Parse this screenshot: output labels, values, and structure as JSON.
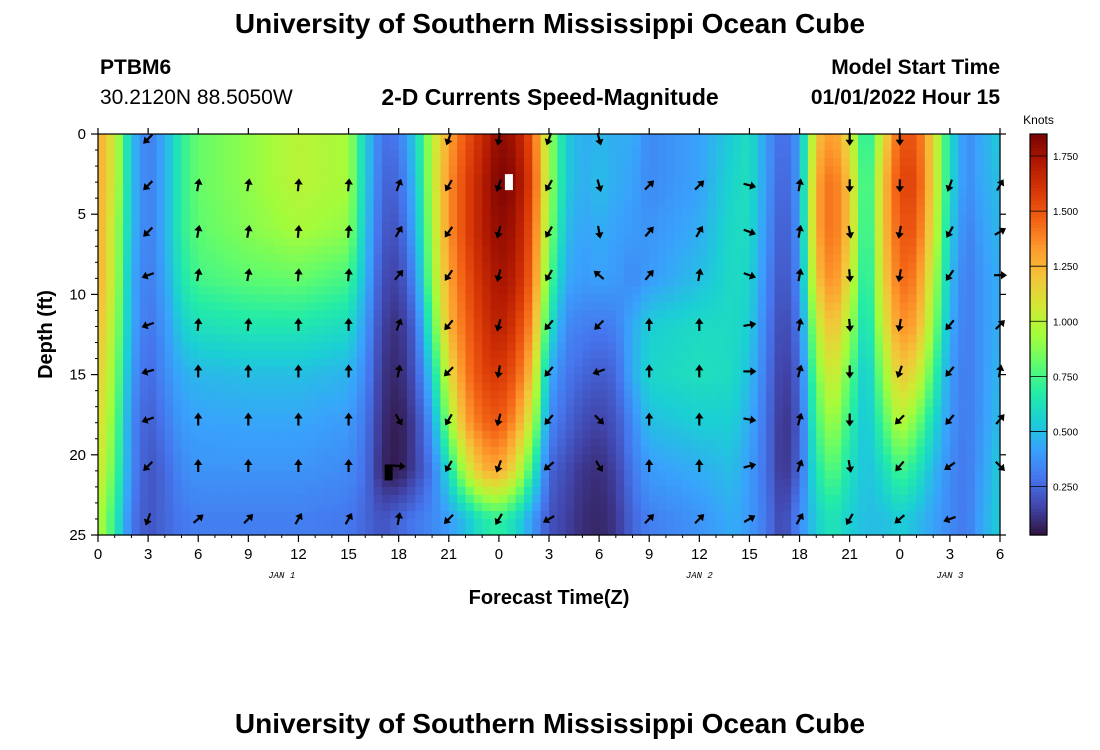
{
  "header": {
    "title": "University of Southern Mississippi Ocean Cube",
    "station_id": "PTBM6",
    "station_coords": "30.2120N  88.5050W",
    "chart_title": "2-D Currents Speed-Magnitude",
    "model_label": "Model Start Time",
    "model_time": "01/01/2022 Hour 15"
  },
  "footer": {
    "title": "University of Southern Mississippi Ocean Cube"
  },
  "chart_data": {
    "type": "heatmap",
    "title": "2-D Currents Speed-Magnitude",
    "xlabel": "Forecast Time(Z)",
    "ylabel": "Depth (ft)",
    "units_label": "Knots",
    "x_range_hours": [
      0,
      54
    ],
    "y_range": [
      0,
      25
    ],
    "y_inverted": true,
    "xtick_hours": [
      0,
      3,
      6,
      9,
      12,
      15,
      18,
      21,
      24,
      27,
      30,
      33,
      36,
      39,
      42,
      45,
      48,
      51,
      54
    ],
    "xtick_labels": [
      "0",
      "3",
      "6",
      "9",
      "12",
      "15",
      "18",
      "21",
      "0",
      "3",
      "6",
      "9",
      "12",
      "15",
      "18",
      "21",
      "0",
      "3",
      "6"
    ],
    "yticks": [
      0,
      5,
      10,
      15,
      20,
      25
    ],
    "ytick_labels": [
      "0",
      "5",
      "10",
      "15",
      "20",
      "25"
    ],
    "day_labels": [
      {
        "hour": 11,
        "text": "JAN 1"
      },
      {
        "hour": 36,
        "text": "JAN 2"
      },
      {
        "hour": 51,
        "text": "JAN 3"
      }
    ],
    "colorbar": {
      "min": 0.03,
      "max": 1.85,
      "ticks": [
        0.25,
        0.5,
        0.75,
        1.0,
        1.25,
        1.5,
        1.75
      ],
      "tick_labels": [
        "0.250",
        "0.500",
        "0.750",
        "1.000",
        "1.250",
        "1.500",
        "1.750"
      ],
      "colormap": [
        "#30123b",
        "#4145ab",
        "#4675ed",
        "#39a2fc",
        "#1bcfd4",
        "#24eca6",
        "#61fc6c",
        "#a4fc3b",
        "#d1e834",
        "#f3c63a",
        "#fe9b2d",
        "#f36315",
        "#d93806",
        "#b11901",
        "#7a0402"
      ]
    },
    "depths": [
      0,
      3,
      6,
      9,
      12,
      15,
      18,
      21,
      24
    ],
    "profiles_note": "speed (knots) at depths [0,3,6,9,12,15,18,21,24] ft for each forecast hour",
    "speed_profiles": [
      {
        "hour": 0,
        "speeds": [
          1.3,
          1.3,
          1.3,
          1.3,
          1.25,
          1.2,
          1.15,
          1.1,
          1.0
        ]
      },
      {
        "hour": 1,
        "speeds": [
          1.05,
          1.05,
          1.0,
          1.0,
          0.95,
          0.9,
          0.85,
          0.8,
          0.7
        ]
      },
      {
        "hour": 2,
        "speeds": [
          0.5,
          0.5,
          0.5,
          0.45,
          0.45,
          0.4,
          0.35,
          0.35,
          0.3
        ]
      },
      {
        "hour": 3,
        "speeds": [
          0.3,
          0.3,
          0.3,
          0.3,
          0.28,
          0.25,
          0.22,
          0.2,
          0.2
        ]
      },
      {
        "hour": 4,
        "speeds": [
          0.45,
          0.45,
          0.45,
          0.42,
          0.38,
          0.35,
          0.3,
          0.25,
          0.25
        ]
      },
      {
        "hour": 5,
        "speeds": [
          0.7,
          0.7,
          0.7,
          0.65,
          0.55,
          0.45,
          0.4,
          0.35,
          0.3
        ]
      },
      {
        "hour": 6,
        "speeds": [
          0.82,
          0.82,
          0.8,
          0.75,
          0.62,
          0.48,
          0.42,
          0.38,
          0.32
        ]
      },
      {
        "hour": 9,
        "speeds": [
          0.9,
          0.9,
          0.88,
          0.8,
          0.65,
          0.5,
          0.43,
          0.38,
          0.32
        ]
      },
      {
        "hour": 12,
        "speeds": [
          1.0,
          1.0,
          0.95,
          0.82,
          0.65,
          0.5,
          0.43,
          0.38,
          0.32
        ]
      },
      {
        "hour": 15,
        "speeds": [
          0.95,
          0.95,
          0.9,
          0.75,
          0.6,
          0.47,
          0.4,
          0.35,
          0.3
        ]
      },
      {
        "hour": 16,
        "speeds": [
          0.55,
          0.55,
          0.52,
          0.48,
          0.4,
          0.35,
          0.3,
          0.28,
          0.25
        ]
      },
      {
        "hour": 17,
        "speeds": [
          0.28,
          0.25,
          0.22,
          0.18,
          0.15,
          0.12,
          0.1,
          0.08,
          0.2
        ]
      },
      {
        "hour": 18,
        "speeds": [
          0.3,
          0.25,
          0.2,
          0.15,
          0.1,
          0.08,
          0.05,
          0.05,
          0.25
        ]
      },
      {
        "hour": 19,
        "speeds": [
          0.55,
          0.5,
          0.45,
          0.35,
          0.25,
          0.2,
          0.15,
          0.15,
          0.3
        ]
      },
      {
        "hour": 20,
        "speeds": [
          1.0,
          1.0,
          0.95,
          0.9,
          0.75,
          0.55,
          0.4,
          0.3,
          0.35
        ]
      },
      {
        "hour": 21,
        "speeds": [
          1.3,
          1.35,
          1.35,
          1.3,
          1.25,
          1.1,
          0.9,
          0.6,
          0.4
        ]
      },
      {
        "hour": 22,
        "speeds": [
          1.5,
          1.55,
          1.55,
          1.5,
          1.45,
          1.4,
          1.3,
          1.0,
          0.5
        ]
      },
      {
        "hour": 23,
        "speeds": [
          1.65,
          1.7,
          1.7,
          1.65,
          1.6,
          1.55,
          1.45,
          1.25,
          0.65
        ]
      },
      {
        "hour": 24,
        "speeds": [
          1.8,
          1.85,
          1.8,
          1.75,
          1.7,
          1.6,
          1.5,
          1.3,
          0.7
        ]
      },
      {
        "hour": 25,
        "speeds": [
          1.75,
          1.8,
          1.75,
          1.7,
          1.6,
          1.5,
          1.35,
          1.1,
          0.6
        ]
      },
      {
        "hour": 26,
        "speeds": [
          1.5,
          1.55,
          1.5,
          1.45,
          1.35,
          1.2,
          1.0,
          0.7,
          0.4
        ]
      },
      {
        "hour": 27,
        "speeds": [
          0.95,
          0.95,
          0.9,
          0.8,
          0.65,
          0.45,
          0.35,
          0.25,
          0.2
        ]
      },
      {
        "hour": 28,
        "speeds": [
          0.55,
          0.55,
          0.5,
          0.45,
          0.35,
          0.3,
          0.25,
          0.18,
          0.15
        ]
      },
      {
        "hour": 29,
        "speeds": [
          0.45,
          0.45,
          0.42,
          0.4,
          0.32,
          0.25,
          0.18,
          0.12,
          0.1
        ]
      },
      {
        "hour": 30,
        "speeds": [
          0.48,
          0.5,
          0.45,
          0.42,
          0.3,
          0.22,
          0.15,
          0.1,
          0.08
        ]
      },
      {
        "hour": 31,
        "speeds": [
          0.45,
          0.45,
          0.42,
          0.4,
          0.32,
          0.25,
          0.2,
          0.15,
          0.12
        ]
      },
      {
        "hour": 32,
        "speeds": [
          0.45,
          0.42,
          0.4,
          0.35,
          0.45,
          0.45,
          0.35,
          0.3,
          0.25
        ]
      },
      {
        "hour": 33,
        "speeds": [
          0.35,
          0.35,
          0.38,
          0.4,
          0.55,
          0.58,
          0.5,
          0.4,
          0.32
        ]
      },
      {
        "hour": 36,
        "speeds": [
          0.42,
          0.42,
          0.45,
          0.5,
          0.6,
          0.62,
          0.55,
          0.45,
          0.38
        ]
      },
      {
        "hour": 38,
        "speeds": [
          0.55,
          0.58,
          0.6,
          0.6,
          0.6,
          0.6,
          0.55,
          0.5,
          0.45
        ]
      },
      {
        "hour": 39,
        "speeds": [
          0.62,
          0.62,
          0.6,
          0.58,
          0.55,
          0.5,
          0.45,
          0.4,
          0.4
        ]
      },
      {
        "hour": 40,
        "speeds": [
          0.4,
          0.4,
          0.38,
          0.35,
          0.32,
          0.3,
          0.28,
          0.28,
          0.3
        ]
      },
      {
        "hour": 41,
        "speeds": [
          0.25,
          0.22,
          0.2,
          0.18,
          0.15,
          0.12,
          0.1,
          0.1,
          0.15
        ]
      },
      {
        "hour": 42,
        "speeds": [
          0.4,
          0.4,
          0.38,
          0.35,
          0.3,
          0.25,
          0.22,
          0.25,
          0.35
        ]
      },
      {
        "hour": 43,
        "speeds": [
          1.2,
          1.3,
          1.3,
          1.2,
          1.0,
          0.85,
          0.75,
          0.65,
          0.55
        ]
      },
      {
        "hour": 44,
        "speeds": [
          1.35,
          1.45,
          1.45,
          1.4,
          1.25,
          1.1,
          0.95,
          0.8,
          0.65
        ]
      },
      {
        "hour": 45,
        "speeds": [
          1.1,
          1.2,
          1.2,
          1.1,
          0.95,
          0.8,
          0.7,
          0.62,
          0.55
        ]
      },
      {
        "hour": 46,
        "speeds": [
          0.6,
          0.62,
          0.6,
          0.58,
          0.55,
          0.5,
          0.5,
          0.5,
          0.5
        ]
      },
      {
        "hour": 47,
        "speeds": [
          1.1,
          1.2,
          1.2,
          1.15,
          1.05,
          0.9,
          0.75,
          0.6,
          0.5
        ]
      },
      {
        "hour": 48,
        "speeds": [
          1.5,
          1.55,
          1.5,
          1.45,
          1.35,
          1.2,
          1.0,
          0.75,
          0.55
        ]
      },
      {
        "hour": 49,
        "speeds": [
          1.5,
          1.55,
          1.5,
          1.4,
          1.3,
          1.1,
          0.85,
          0.65,
          0.5
        ]
      },
      {
        "hour": 50,
        "speeds": [
          1.15,
          1.15,
          1.1,
          1.0,
          0.9,
          0.75,
          0.6,
          0.48,
          0.42
        ]
      },
      {
        "hour": 51,
        "speeds": [
          0.6,
          0.6,
          0.55,
          0.5,
          0.45,
          0.4,
          0.38,
          0.35,
          0.35
        ]
      },
      {
        "hour": 52,
        "speeds": [
          0.35,
          0.35,
          0.32,
          0.3,
          0.3,
          0.3,
          0.3,
          0.3,
          0.3
        ]
      },
      {
        "hour": 53,
        "speeds": [
          0.45,
          0.45,
          0.42,
          0.4,
          0.4,
          0.4,
          0.4,
          0.42,
          0.45
        ]
      },
      {
        "hour": 54,
        "speeds": [
          0.55,
          0.5,
          0.48,
          0.45,
          0.45,
          0.48,
          0.5,
          0.55,
          0.55
        ]
      }
    ],
    "vectors_note": "arrow direction in compass degrees (0 = toward north/up) at each hour and depth",
    "vector_hours": [
      3,
      6,
      9,
      12,
      15,
      18,
      21,
      24,
      27,
      30,
      33,
      36,
      39,
      42,
      45,
      48,
      51,
      54
    ],
    "vector_depths": [
      0.3,
      3.2,
      6.1,
      8.8,
      11.9,
      14.8,
      17.8,
      20.7,
      24.0
    ],
    "vectors": [
      {
        "hour": 3,
        "dirs": [
          225,
          225,
          225,
          250,
          250,
          255,
          250,
          225,
          200
        ]
      },
      {
        "hour": 6,
        "dirs": [
          null,
          10,
          10,
          10,
          5,
          0,
          0,
          0,
          50
        ]
      },
      {
        "hour": 9,
        "dirs": [
          null,
          10,
          10,
          10,
          5,
          0,
          0,
          0,
          45
        ]
      },
      {
        "hour": 12,
        "dirs": [
          null,
          5,
          5,
          5,
          0,
          0,
          0,
          0,
          30
        ]
      },
      {
        "hour": 15,
        "dirs": [
          null,
          5,
          5,
          5,
          0,
          0,
          0,
          0,
          30
        ]
      },
      {
        "hour": 18,
        "dirs": [
          null,
          20,
          30,
          40,
          20,
          10,
          150,
          95,
          10
        ]
      },
      {
        "hour": 21,
        "dirs": [
          200,
          210,
          215,
          215,
          220,
          225,
          210,
          210,
          225
        ]
      },
      {
        "hour": 24,
        "dirs": [
          190,
          200,
          195,
          195,
          195,
          190,
          195,
          200,
          210
        ]
      },
      {
        "hour": 27,
        "dirs": [
          200,
          210,
          210,
          210,
          220,
          220,
          220,
          230,
          240
        ]
      },
      {
        "hour": 30,
        "dirs": [
          165,
          165,
          170,
          310,
          225,
          250,
          135,
          150,
          null
        ]
      },
      {
        "hour": 33,
        "dirs": [
          null,
          45,
          40,
          40,
          0,
          0,
          0,
          0,
          45
        ]
      },
      {
        "hour": 36,
        "dirs": [
          null,
          45,
          30,
          10,
          0,
          0,
          0,
          0,
          45
        ]
      },
      {
        "hour": 39,
        "dirs": [
          null,
          105,
          110,
          110,
          80,
          90,
          100,
          75,
          60
        ]
      },
      {
        "hour": 42,
        "dirs": [
          null,
          10,
          10,
          10,
          10,
          15,
          15,
          20,
          30
        ]
      },
      {
        "hour": 45,
        "dirs": [
          180,
          180,
          170,
          175,
          175,
          180,
          180,
          170,
          210
        ]
      },
      {
        "hour": 48,
        "dirs": [
          180,
          180,
          190,
          190,
          190,
          200,
          225,
          220,
          230
        ]
      },
      {
        "hour": 51,
        "dirs": [
          null,
          200,
          210,
          215,
          220,
          220,
          220,
          235,
          250
        ]
      },
      {
        "hour": 54,
        "dirs": [
          null,
          30,
          60,
          90,
          45,
          10,
          40,
          135,
          null
        ]
      }
    ],
    "marked_cells": [
      {
        "hour": 24.6,
        "depth": 3.0,
        "color": "#ffffff"
      },
      {
        "hour": 17.4,
        "depth": 21.1,
        "color": "#000000"
      }
    ]
  }
}
